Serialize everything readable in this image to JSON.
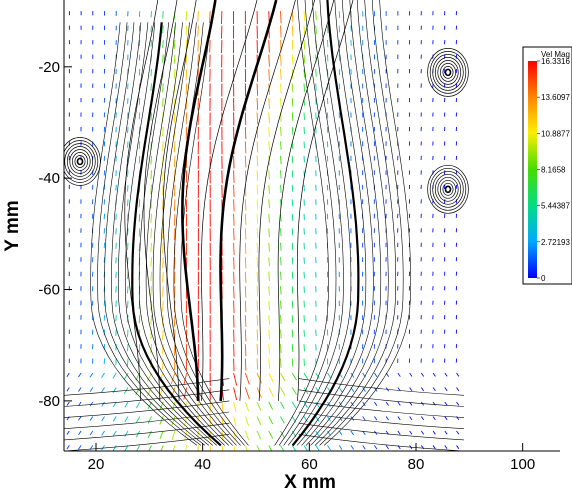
{
  "chart_data": {
    "type": "vector_field",
    "xlabel": "X mm",
    "ylabel": "Y mm",
    "xlim": [
      14,
      107
    ],
    "ylim": [
      -89,
      -8
    ],
    "x_ticks": [
      20,
      40,
      60,
      80,
      100
    ],
    "y_ticks": [
      -20,
      -40,
      -60,
      -80
    ],
    "field_x_range": [
      14,
      89
    ],
    "field_y_range": [
      -89,
      -8
    ],
    "legend": {
      "title": "Vel Mag",
      "entries": [
        "16.3316",
        "13.6097",
        "10.8877",
        "8.1658",
        "5.44387",
        "2.72193",
        "0"
      ],
      "colors": [
        "#ff0000",
        "#ff8800",
        "#ffee00",
        "#44dd00",
        "#00dd88",
        "#00aaff",
        "#0000ff"
      ]
    },
    "vortices": [
      {
        "x": 17,
        "y": -37
      },
      {
        "x": 86,
        "y": -21
      },
      {
        "x": 86,
        "y": -42
      }
    ]
  }
}
